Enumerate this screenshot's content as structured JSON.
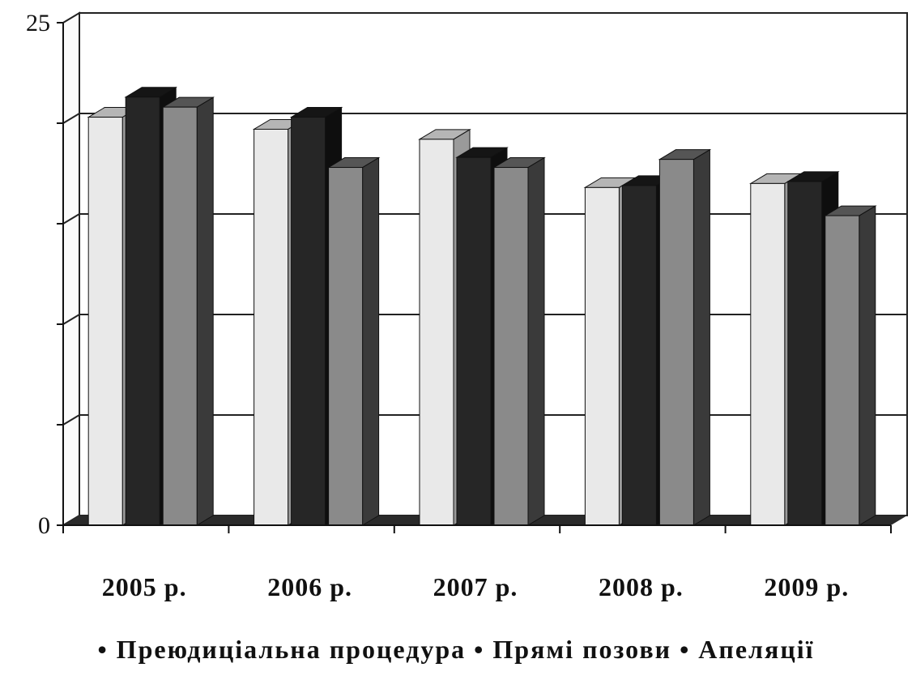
{
  "chart_data": {
    "type": "bar",
    "categories": [
      "2005 р.",
      "2006 р.",
      "2007 р.",
      "2008 р.",
      "2009 р."
    ],
    "series": [
      {
        "name": "Преюдиціальна процедура",
        "values": [
          20.3,
          19.7,
          19.2,
          16.8,
          17.0
        ],
        "color": "#e9e9e9"
      },
      {
        "name": "Прямі позови",
        "values": [
          21.3,
          20.3,
          18.3,
          16.9,
          17.1
        ],
        "color": "#262626"
      },
      {
        "name": "Апеляції",
        "values": [
          20.8,
          17.8,
          17.8,
          18.2,
          15.4
        ],
        "color": "#8a8a8a"
      }
    ],
    "ylim": [
      0,
      25
    ],
    "y_tick_labels": [
      "0",
      "25"
    ],
    "y_gridlines": [
      5,
      10,
      15,
      20
    ],
    "grid": true,
    "legend_position": "bottom",
    "legend_bullet": "•",
    "xlabel": "",
    "ylabel": "",
    "title": ""
  }
}
